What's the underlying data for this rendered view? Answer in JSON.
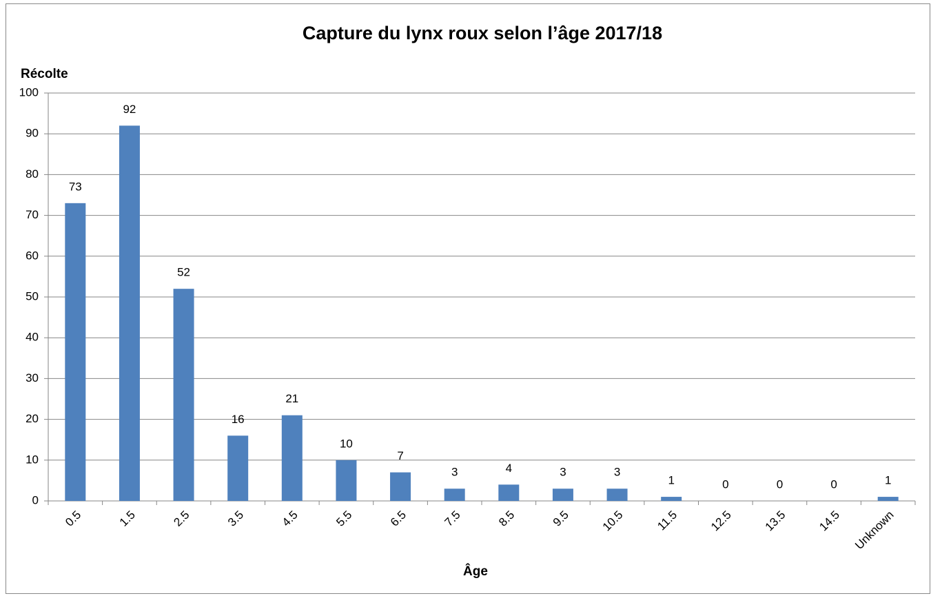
{
  "chart_data": {
    "type": "bar",
    "title": "Capture du lynx roux selon l’âge 2017/18",
    "y_label": "Récolte",
    "x_label": "Âge",
    "categories": [
      "0.5",
      "1.5",
      "2.5",
      "3.5",
      "4.5",
      "5.5",
      "6.5",
      "7.5",
      "8.5",
      "9.5",
      "10.5",
      "11.5",
      "12.5",
      "13.5",
      "14.5",
      "Unknown"
    ],
    "values": [
      73,
      92,
      52,
      16,
      21,
      10,
      7,
      3,
      4,
      3,
      3,
      1,
      0,
      0,
      0,
      1
    ],
    "color": "#4f81bd",
    "ylim": [
      0,
      100
    ],
    "yticks": [
      0,
      10,
      20,
      30,
      40,
      50,
      60,
      70,
      80,
      90,
      100
    ],
    "grid": true
  }
}
